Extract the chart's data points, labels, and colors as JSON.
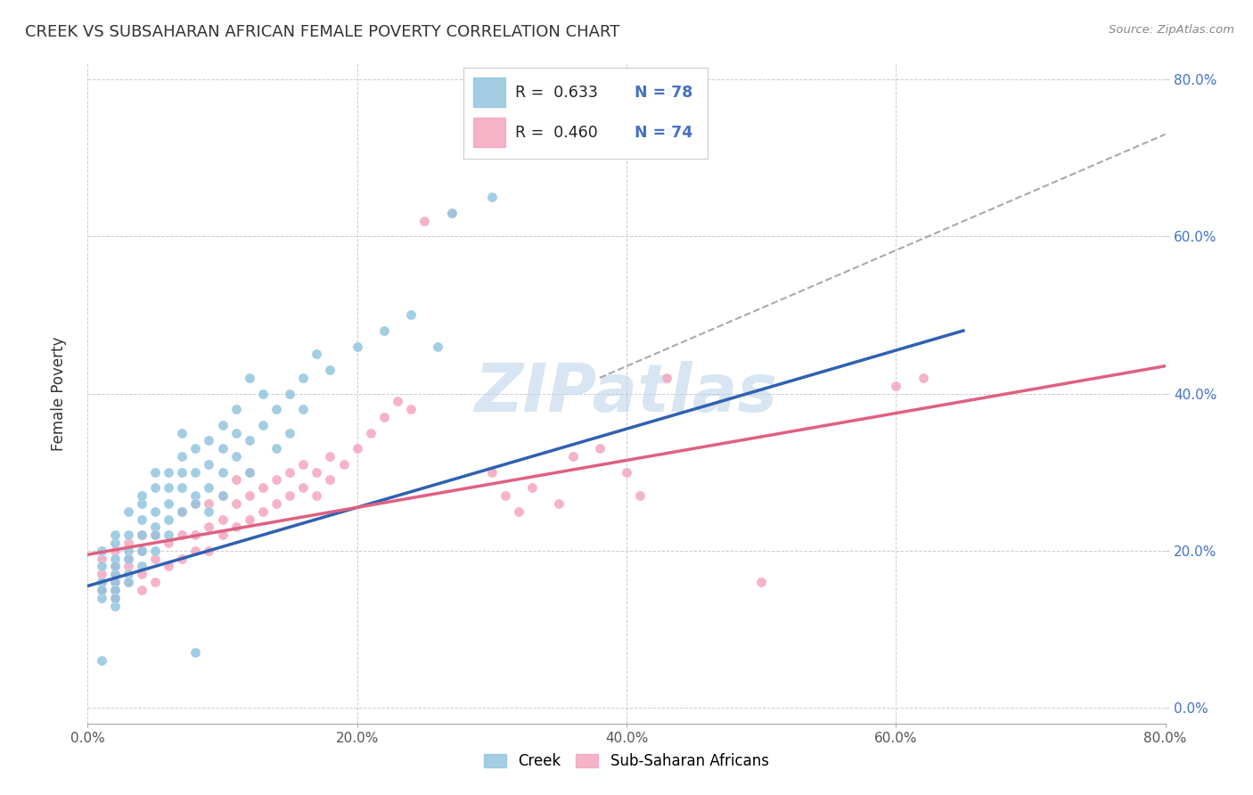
{
  "title": "CREEK VS SUBSAHARAN AFRICAN FEMALE POVERTY CORRELATION CHART",
  "source": "Source: ZipAtlas.com",
  "ylabel": "Female Poverty",
  "xlim": [
    0.0,
    0.8
  ],
  "ylim": [
    -0.02,
    0.82
  ],
  "xticks": [
    0.0,
    0.2,
    0.4,
    0.6,
    0.8
  ],
  "yticks": [
    0.0,
    0.2,
    0.4,
    0.6,
    0.8
  ],
  "creek_color": "#92c5de",
  "subsaharan_color": "#f4a6be",
  "creek_line_color": "#3060b0",
  "subsaharan_line_color": "#e06080",
  "dashed_line_color": "#aaaaaa",
  "creek_R": 0.633,
  "creek_N": 78,
  "subsaharan_R": 0.46,
  "subsaharan_N": 74,
  "creek_label": "Creek",
  "subsaharan_label": "Sub-Saharan Africans",
  "watermark": "ZIPatlas",
  "background_color": "#ffffff",
  "grid_color": "#cccccc",
  "creek_line": [
    [
      0.0,
      0.155
    ],
    [
      0.65,
      0.48
    ]
  ],
  "subsaharan_line": [
    [
      0.0,
      0.195
    ],
    [
      0.8,
      0.435
    ]
  ],
  "dashed_line": [
    [
      0.38,
      0.42
    ],
    [
      0.8,
      0.73
    ]
  ],
  "creek_scatter": [
    [
      0.01,
      0.14
    ],
    [
      0.01,
      0.16
    ],
    [
      0.01,
      0.18
    ],
    [
      0.01,
      0.2
    ],
    [
      0.01,
      0.15
    ],
    [
      0.02,
      0.13
    ],
    [
      0.02,
      0.17
    ],
    [
      0.02,
      0.19
    ],
    [
      0.02,
      0.21
    ],
    [
      0.02,
      0.22
    ],
    [
      0.02,
      0.16
    ],
    [
      0.02,
      0.18
    ],
    [
      0.02,
      0.15
    ],
    [
      0.02,
      0.14
    ],
    [
      0.03,
      0.2
    ],
    [
      0.03,
      0.22
    ],
    [
      0.03,
      0.25
    ],
    [
      0.03,
      0.17
    ],
    [
      0.03,
      0.19
    ],
    [
      0.03,
      0.16
    ],
    [
      0.04,
      0.22
    ],
    [
      0.04,
      0.24
    ],
    [
      0.04,
      0.26
    ],
    [
      0.04,
      0.2
    ],
    [
      0.04,
      0.18
    ],
    [
      0.04,
      0.27
    ],
    [
      0.05,
      0.23
    ],
    [
      0.05,
      0.25
    ],
    [
      0.05,
      0.28
    ],
    [
      0.05,
      0.3
    ],
    [
      0.05,
      0.2
    ],
    [
      0.05,
      0.22
    ],
    [
      0.06,
      0.26
    ],
    [
      0.06,
      0.28
    ],
    [
      0.06,
      0.3
    ],
    [
      0.06,
      0.24
    ],
    [
      0.06,
      0.22
    ],
    [
      0.07,
      0.28
    ],
    [
      0.07,
      0.3
    ],
    [
      0.07,
      0.25
    ],
    [
      0.07,
      0.32
    ],
    [
      0.07,
      0.35
    ],
    [
      0.08,
      0.3
    ],
    [
      0.08,
      0.27
    ],
    [
      0.08,
      0.33
    ],
    [
      0.08,
      0.26
    ],
    [
      0.09,
      0.28
    ],
    [
      0.09,
      0.31
    ],
    [
      0.09,
      0.34
    ],
    [
      0.09,
      0.25
    ],
    [
      0.1,
      0.3
    ],
    [
      0.1,
      0.33
    ],
    [
      0.1,
      0.36
    ],
    [
      0.1,
      0.27
    ],
    [
      0.11,
      0.32
    ],
    [
      0.11,
      0.38
    ],
    [
      0.11,
      0.35
    ],
    [
      0.12,
      0.34
    ],
    [
      0.12,
      0.3
    ],
    [
      0.12,
      0.42
    ],
    [
      0.13,
      0.36
    ],
    [
      0.13,
      0.4
    ],
    [
      0.14,
      0.38
    ],
    [
      0.14,
      0.33
    ],
    [
      0.15,
      0.4
    ],
    [
      0.15,
      0.35
    ],
    [
      0.16,
      0.42
    ],
    [
      0.16,
      0.38
    ],
    [
      0.17,
      0.45
    ],
    [
      0.18,
      0.43
    ],
    [
      0.2,
      0.46
    ],
    [
      0.22,
      0.48
    ],
    [
      0.24,
      0.5
    ],
    [
      0.26,
      0.46
    ],
    [
      0.01,
      0.06
    ],
    [
      0.08,
      0.07
    ],
    [
      0.27,
      0.63
    ],
    [
      0.3,
      0.65
    ]
  ],
  "subsaharan_scatter": [
    [
      0.01,
      0.15
    ],
    [
      0.01,
      0.17
    ],
    [
      0.01,
      0.19
    ],
    [
      0.01,
      0.16
    ],
    [
      0.02,
      0.14
    ],
    [
      0.02,
      0.16
    ],
    [
      0.02,
      0.18
    ],
    [
      0.02,
      0.2
    ],
    [
      0.02,
      0.15
    ],
    [
      0.02,
      0.17
    ],
    [
      0.03,
      0.16
    ],
    [
      0.03,
      0.19
    ],
    [
      0.03,
      0.21
    ],
    [
      0.03,
      0.18
    ],
    [
      0.04,
      0.17
    ],
    [
      0.04,
      0.2
    ],
    [
      0.04,
      0.22
    ],
    [
      0.04,
      0.15
    ],
    [
      0.05,
      0.19
    ],
    [
      0.05,
      0.22
    ],
    [
      0.05,
      0.16
    ],
    [
      0.06,
      0.21
    ],
    [
      0.06,
      0.18
    ],
    [
      0.07,
      0.22
    ],
    [
      0.07,
      0.19
    ],
    [
      0.07,
      0.25
    ],
    [
      0.08,
      0.22
    ],
    [
      0.08,
      0.2
    ],
    [
      0.08,
      0.26
    ],
    [
      0.09,
      0.23
    ],
    [
      0.09,
      0.2
    ],
    [
      0.09,
      0.26
    ],
    [
      0.1,
      0.24
    ],
    [
      0.1,
      0.22
    ],
    [
      0.1,
      0.27
    ],
    [
      0.11,
      0.26
    ],
    [
      0.11,
      0.23
    ],
    [
      0.11,
      0.29
    ],
    [
      0.12,
      0.27
    ],
    [
      0.12,
      0.24
    ],
    [
      0.12,
      0.3
    ],
    [
      0.13,
      0.25
    ],
    [
      0.13,
      0.28
    ],
    [
      0.14,
      0.26
    ],
    [
      0.14,
      0.29
    ],
    [
      0.15,
      0.27
    ],
    [
      0.15,
      0.3
    ],
    [
      0.16,
      0.28
    ],
    [
      0.16,
      0.31
    ],
    [
      0.17,
      0.3
    ],
    [
      0.17,
      0.27
    ],
    [
      0.18,
      0.29
    ],
    [
      0.18,
      0.32
    ],
    [
      0.19,
      0.31
    ],
    [
      0.2,
      0.33
    ],
    [
      0.21,
      0.35
    ],
    [
      0.22,
      0.37
    ],
    [
      0.23,
      0.39
    ],
    [
      0.24,
      0.38
    ],
    [
      0.25,
      0.62
    ],
    [
      0.27,
      0.63
    ],
    [
      0.3,
      0.3
    ],
    [
      0.31,
      0.27
    ],
    [
      0.32,
      0.25
    ],
    [
      0.33,
      0.28
    ],
    [
      0.35,
      0.26
    ],
    [
      0.36,
      0.32
    ],
    [
      0.38,
      0.33
    ],
    [
      0.4,
      0.3
    ],
    [
      0.41,
      0.27
    ],
    [
      0.43,
      0.42
    ],
    [
      0.5,
      0.16
    ],
    [
      0.6,
      0.41
    ],
    [
      0.62,
      0.42
    ]
  ]
}
